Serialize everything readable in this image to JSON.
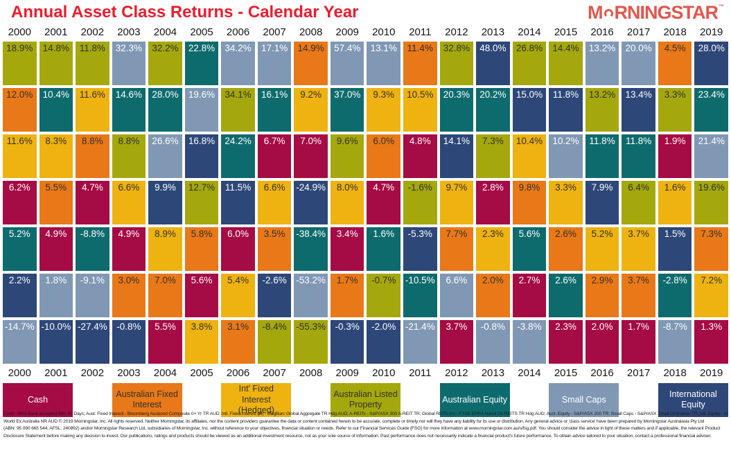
{
  "header": {
    "title": "Annual Asset Class Returns - Calendar Year",
    "title_color": "#ed1b2c",
    "logo": {
      "before_o": "M",
      "after_o": "RNINGSTAR",
      "trademark": "TM",
      "color": "#e2574d",
      "o_icon": "open-circle-arc"
    }
  },
  "chart_data": {
    "type": "heatmap",
    "title": "Annual Asset Class Returns - Calendar Year",
    "layout_hint": "periodic-table of returns; each column is a year, cells ranked best-to-worst top-to-bottom; year labels shown above and below grid; legend below",
    "years": [
      2000,
      2001,
      2002,
      2003,
      2004,
      2005,
      2006,
      2007,
      2008,
      2009,
      2010,
      2011,
      2012,
      2013,
      2014,
      2015,
      2016,
      2017,
      2018,
      2019
    ],
    "asset_classes": {
      "cash": {
        "label": "Cash",
        "color": "#a50b45",
        "text": "#ffffff"
      },
      "afi": {
        "label": "Australian Fixed Interest",
        "color": "#e87818",
        "text": "#33302a"
      },
      "ifi": {
        "label": "Int' Fixed Interest (Hedged)",
        "color": "#eeb211",
        "text": "#33302a"
      },
      "alp": {
        "label": "Australian Listed Property",
        "color": "#a4a80d",
        "text": "#33302a"
      },
      "ae": {
        "label": "Australian Equity",
        "color": "#0e6b6d",
        "text": "#ffffff"
      },
      "sc": {
        "label": "Small Caps",
        "color": "#8098b4",
        "text": "#ffffff"
      },
      "ie": {
        "label": "International Equity",
        "color": "#2d4778",
        "text": "#ffffff"
      }
    },
    "legend_order": [
      "cash",
      "afi",
      "ifi",
      "alp",
      "ae",
      "sc",
      "ie"
    ],
    "rows": [
      [
        [
          "18.9%",
          "alp"
        ],
        [
          "14.8%",
          "alp"
        ],
        [
          "11.8%",
          "alp"
        ],
        [
          "32.3%",
          "sc"
        ],
        [
          "32.2%",
          "alp"
        ],
        [
          "22.8%",
          "ae"
        ],
        [
          "34.2%",
          "sc"
        ],
        [
          "17.1%",
          "sc"
        ],
        [
          "14.9%",
          "afi"
        ],
        [
          "57.4%",
          "sc"
        ],
        [
          "13.1%",
          "sc"
        ],
        [
          "11.4%",
          "afi"
        ],
        [
          "32.8%",
          "alp"
        ],
        [
          "48.0%",
          "ie"
        ],
        [
          "26.8%",
          "alp"
        ],
        [
          "14.4%",
          "alp"
        ],
        [
          "13.2%",
          "sc"
        ],
        [
          "20.0%",
          "sc"
        ],
        [
          "4.5%",
          "afi"
        ],
        [
          "28.0%",
          "ie"
        ]
      ],
      [
        [
          "12.0%",
          "afi"
        ],
        [
          "10.4%",
          "ae"
        ],
        [
          "11.6%",
          "ifi"
        ],
        [
          "14.6%",
          "ae"
        ],
        [
          "28.0%",
          "ae"
        ],
        [
          "19.6%",
          "sc"
        ],
        [
          "34.1%",
          "alp"
        ],
        [
          "16.1%",
          "ae"
        ],
        [
          "9.2%",
          "ifi"
        ],
        [
          "37.0%",
          "ae"
        ],
        [
          "9.3%",
          "ifi"
        ],
        [
          "10.5%",
          "ifi"
        ],
        [
          "20.3%",
          "ae"
        ],
        [
          "20.2%",
          "ae"
        ],
        [
          "15.0%",
          "ie"
        ],
        [
          "11.8%",
          "ie"
        ],
        [
          "13.2%",
          "alp"
        ],
        [
          "13.4%",
          "ie"
        ],
        [
          "3.3%",
          "alp"
        ],
        [
          "23.4%",
          "ae"
        ]
      ],
      [
        [
          "11.6%",
          "ifi"
        ],
        [
          "8.3%",
          "ifi"
        ],
        [
          "8.8%",
          "afi"
        ],
        [
          "8.8%",
          "alp"
        ],
        [
          "26.6%",
          "sc"
        ],
        [
          "16.8%",
          "ie"
        ],
        [
          "24.2%",
          "ae"
        ],
        [
          "6.7%",
          "cash"
        ],
        [
          "7.0%",
          "cash"
        ],
        [
          "9.6%",
          "alp"
        ],
        [
          "6.0%",
          "afi"
        ],
        [
          "4.8%",
          "cash"
        ],
        [
          "14.1%",
          "ie"
        ],
        [
          "7.3%",
          "alp"
        ],
        [
          "10.4%",
          "ifi"
        ],
        [
          "10.2%",
          "sc"
        ],
        [
          "11.8%",
          "ae"
        ],
        [
          "11.8%",
          "ae"
        ],
        [
          "1.9%",
          "cash"
        ],
        [
          "21.4%",
          "sc"
        ]
      ],
      [
        [
          "6.2%",
          "cash"
        ],
        [
          "5.5%",
          "afi"
        ],
        [
          "4.7%",
          "cash"
        ],
        [
          "6.6%",
          "ifi"
        ],
        [
          "9.9%",
          "ie"
        ],
        [
          "12.7%",
          "alp"
        ],
        [
          "11.5%",
          "ie"
        ],
        [
          "6.6%",
          "ifi"
        ],
        [
          "-24.9%",
          "ie"
        ],
        [
          "8.0%",
          "ifi"
        ],
        [
          "4.7%",
          "cash"
        ],
        [
          "-1.6%",
          "alp"
        ],
        [
          "9.7%",
          "ifi"
        ],
        [
          "2.8%",
          "cash"
        ],
        [
          "9.8%",
          "afi"
        ],
        [
          "3.3%",
          "ifi"
        ],
        [
          "7.9%",
          "ie"
        ],
        [
          "6.4%",
          "alp"
        ],
        [
          "1.6%",
          "ifi"
        ],
        [
          "19.6%",
          "alp"
        ]
      ],
      [
        [
          "5.2%",
          "ae"
        ],
        [
          "4.9%",
          "cash"
        ],
        [
          "-8.8%",
          "ae"
        ],
        [
          "4.9%",
          "cash"
        ],
        [
          "8.9%",
          "ifi"
        ],
        [
          "5.8%",
          "afi"
        ],
        [
          "6.0%",
          "cash"
        ],
        [
          "3.5%",
          "afi"
        ],
        [
          "-38.4%",
          "ae"
        ],
        [
          "3.4%",
          "cash"
        ],
        [
          "1.6%",
          "ae"
        ],
        [
          "-5.3%",
          "ie"
        ],
        [
          "7.7%",
          "afi"
        ],
        [
          "2.3%",
          "ifi"
        ],
        [
          "5.6%",
          "ae"
        ],
        [
          "2.6%",
          "afi"
        ],
        [
          "5.2%",
          "ifi"
        ],
        [
          "3.7%",
          "ifi"
        ],
        [
          "1.5%",
          "ie"
        ],
        [
          "7.3%",
          "afi"
        ]
      ],
      [
        [
          "2.2%",
          "ie"
        ],
        [
          "1.8%",
          "sc"
        ],
        [
          "-9.1%",
          "sc"
        ],
        [
          "3.0%",
          "afi"
        ],
        [
          "7.0%",
          "afi"
        ],
        [
          "5.6%",
          "cash"
        ],
        [
          "5.4%",
          "ifi"
        ],
        [
          "-2.6%",
          "ie"
        ],
        [
          "-53.2%",
          "sc"
        ],
        [
          "1.7%",
          "afi"
        ],
        [
          "-0.7%",
          "alp"
        ],
        [
          "-10.5%",
          "ae"
        ],
        [
          "6.6%",
          "sc"
        ],
        [
          "2.0%",
          "afi"
        ],
        [
          "2.7%",
          "cash"
        ],
        [
          "2.6%",
          "ae"
        ],
        [
          "2.9%",
          "afi"
        ],
        [
          "3.7%",
          "afi"
        ],
        [
          "-2.8%",
          "ae"
        ],
        [
          "7.2%",
          "ifi"
        ]
      ],
      [
        [
          "-14.7%",
          "sc"
        ],
        [
          "-10.0%",
          "ie"
        ],
        [
          "-27.4%",
          "ie"
        ],
        [
          "-0.8%",
          "ie"
        ],
        [
          "5.5%",
          "cash"
        ],
        [
          "3.8%",
          "ifi"
        ],
        [
          "3.1%",
          "afi"
        ],
        [
          "-8.4%",
          "alp"
        ],
        [
          "-55.3%",
          "alp"
        ],
        [
          "-0.3%",
          "ie"
        ],
        [
          "-2.0%",
          "ie"
        ],
        [
          "-21.4%",
          "sc"
        ],
        [
          "3.7%",
          "cash"
        ],
        [
          "-0.8%",
          "sc"
        ],
        [
          "-3.8%",
          "sc"
        ],
        [
          "2.3%",
          "cash"
        ],
        [
          "2.0%",
          "cash"
        ],
        [
          "1.7%",
          "cash"
        ],
        [
          "-8.7%",
          "sc"
        ],
        [
          "1.3%",
          "cash"
        ]
      ]
    ]
  },
  "footnote": {
    "lines": [
      "Cash - RBA Bank accepted Bills 90 Days; Aust. Fixed Interest - Bloomberg Ausbond Composite 0+ Yr TR AUD; Intl. Fixed Interest (H) - BBgBarc Global Aggregate TR Hdg AUD; A-REITs - S&P/ASX 300 A-REIT TR; Global REITs (H) - FTSE EPRA Nareit Dv REITS TR Hdg AUD; Aust. Equity - S&P/ASX 200 TR; Small Caps - S&P/ASX Small Ordinaries TR; Intl. Equity - MSCI",
      "World Ex Australia NR AUD © 2019 Morningstar, Inc. All rights reserved. Neither Morningstar, its affiliates, nor the content providers guarantee the data or content contained herein to be accurate, complete or timely nor will they have any liability for its use or distribution. Any general advice or 'class service' have been prepared by Morningstar Australasia Pty Ltd",
      "(ABN: 95 090 665 544, AFSL: 240892) and/or Morningstar Research Ltd, subsidiaries of Morningstar, Inc. without reference to your objectives, financial situation or needs. Refer to our Financial Services Guide (FSG) for more information at www.morningstar.com.au/s/fsg.pdf. You should consider the advice in light of these matters and if applicable, the relevant Product",
      "Disclosure Statement before making any decision to invest. Our publications, ratings and products should be viewed as an additional investment resource, not as your sole source of information. Past performance does not necessarily indicate a financial product's future performance. To obtain advice tailored to your situation, contact a professional financial adviser."
    ]
  }
}
